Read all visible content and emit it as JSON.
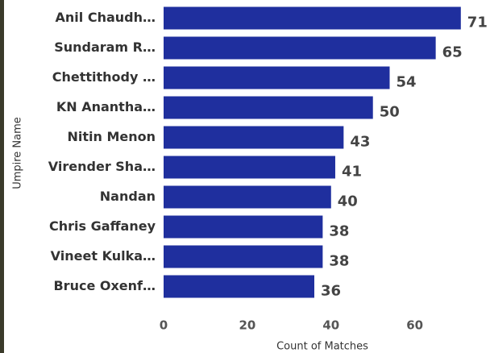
{
  "chart_data": {
    "type": "bar",
    "orientation": "horizontal",
    "categories": [
      "Anil Chaudh…",
      "Sundaram R…",
      "Chettithody …",
      "KN Anantha…",
      "Nitin Menon",
      "Virender Sha…",
      "Nandan",
      "Chris Gaffaney",
      "Vineet Kulka…",
      "Bruce Oxenf…"
    ],
    "values": [
      71,
      65,
      54,
      50,
      43,
      41,
      40,
      38,
      38,
      36
    ],
    "color": "#1f2f9e",
    "xlim": [
      0,
      72
    ],
    "xticks": [
      0,
      20,
      40,
      60
    ],
    "x_label": "Count of Matches",
    "y_label": "Umpire Name"
  }
}
